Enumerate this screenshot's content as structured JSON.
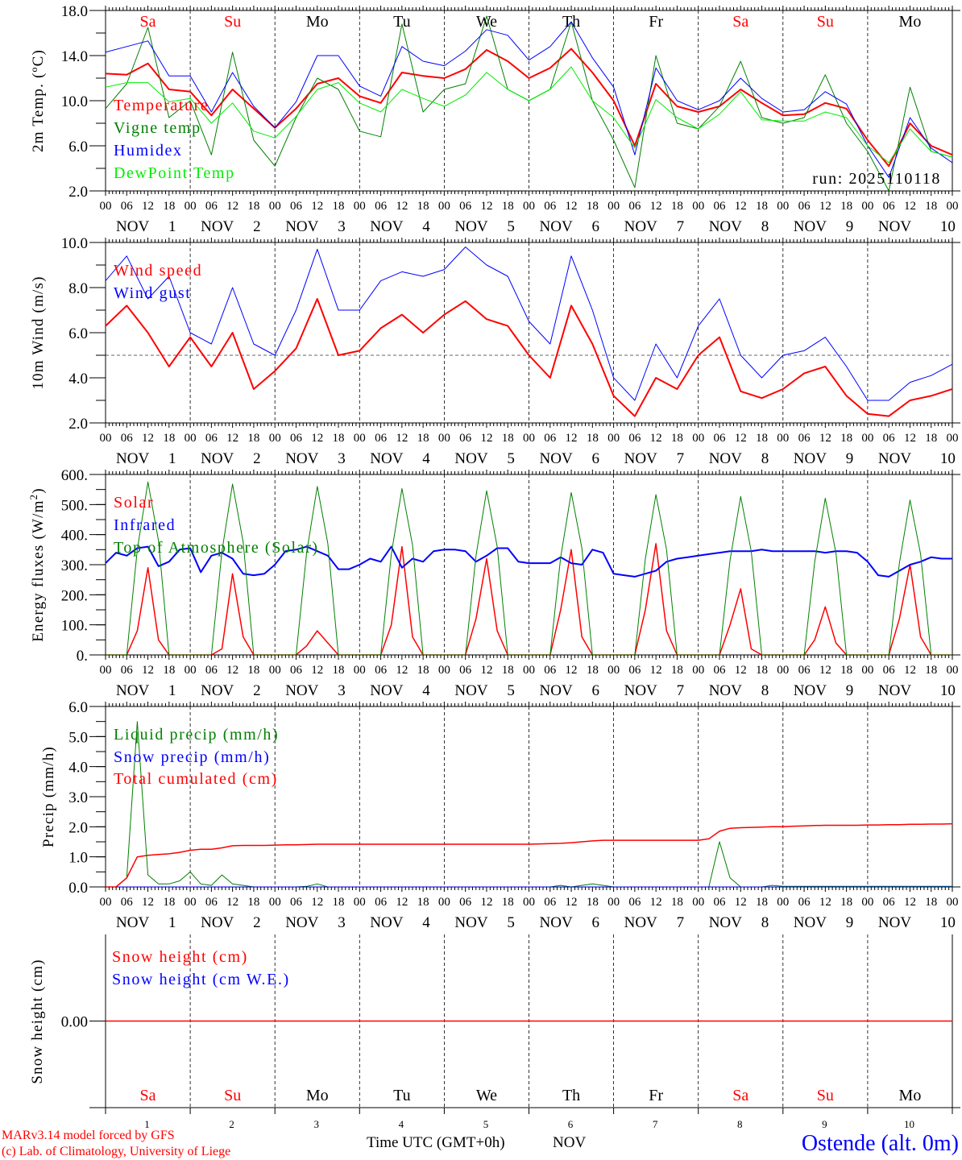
{
  "chart_data": [
    {
      "type": "line",
      "ylabel": "2m Temp. (ºC)",
      "ylim": [
        2,
        18
      ],
      "yticks": [
        "2.0",
        "6.0",
        "10.0",
        "14.0",
        "18.0"
      ],
      "ytick_values": [
        2,
        6,
        10,
        14,
        18
      ],
      "step_hours": 6,
      "annotation": "run: 2025110118",
      "series": [
        {
          "name": "Temperature",
          "color": "#ff0000",
          "width": 2,
          "values": [
            12.4,
            12.3,
            13.3,
            11.0,
            10.8,
            8.7,
            11.0,
            9.3,
            7.6,
            9.3,
            11.5,
            12.0,
            10.4,
            9.8,
            12.5,
            12.2,
            12.0,
            12.8,
            14.5,
            13.5,
            12.0,
            12.9,
            14.6,
            12.5,
            10.0,
            6.0,
            11.5,
            9.5,
            9.0,
            9.5,
            11.0,
            9.8,
            8.7,
            8.8,
            9.8,
            9.3,
            6.5,
            4.2,
            8.0,
            6.0,
            5.2
          ]
        },
        {
          "name": "Vigne temp",
          "color": "#008000",
          "width": 1,
          "values": [
            9.3,
            11.5,
            16.5,
            8.5,
            10.0,
            5.2,
            14.3,
            6.5,
            4.2,
            8.5,
            12.0,
            11.0,
            7.3,
            6.8,
            16.8,
            9.0,
            11.0,
            11.5,
            17.5,
            11.0,
            10.0,
            11.0,
            17.0,
            10.0,
            6.5,
            2.3,
            14.0,
            8.0,
            7.5,
            9.5,
            13.5,
            8.5,
            8.0,
            8.5,
            12.3,
            8.0,
            5.5,
            2.0,
            11.2,
            5.5,
            5.0
          ]
        },
        {
          "name": "Humidex",
          "color": "#0000ff",
          "width": 1,
          "values": [
            14.3,
            14.8,
            15.3,
            12.2,
            12.2,
            9.0,
            12.5,
            9.5,
            7.6,
            9.9,
            14.0,
            14.0,
            11.3,
            10.4,
            14.8,
            13.5,
            13.1,
            14.4,
            16.3,
            15.8,
            13.6,
            14.8,
            17.0,
            13.8,
            11.2,
            5.2,
            12.9,
            10.0,
            9.2,
            10.0,
            12.0,
            10.2,
            9.0,
            9.2,
            10.8,
            9.7,
            6.0,
            3.2,
            8.5,
            5.8,
            4.5
          ]
        },
        {
          "name": "DewPoint Temp",
          "color": "#00ee00",
          "width": 1,
          "values": [
            11.2,
            11.6,
            11.6,
            9.9,
            10.2,
            8.0,
            9.8,
            7.3,
            6.7,
            8.6,
            11.0,
            11.6,
            9.8,
            9.0,
            11.0,
            10.2,
            9.5,
            10.5,
            12.5,
            11.0,
            10.0,
            11.0,
            13.0,
            10.0,
            8.5,
            5.8,
            10.1,
            8.5,
            7.5,
            8.8,
            10.8,
            8.3,
            8.2,
            8.2,
            9.0,
            8.5,
            6.0,
            4.5,
            7.5,
            5.5,
            5.0
          ]
        }
      ]
    },
    {
      "type": "line",
      "ylabel": "10m Wind (m/s)",
      "ylim": [
        2,
        10
      ],
      "yticks": [
        "2.0",
        "4.0",
        "6.0",
        "8.0",
        "10.0"
      ],
      "ytick_values": [
        2,
        4,
        6,
        8,
        10
      ],
      "reference_line": 5,
      "step_hours": 6,
      "series": [
        {
          "name": "Wind speed",
          "color": "#ff0000",
          "width": 2,
          "values": [
            6.3,
            7.2,
            6.0,
            4.5,
            5.8,
            4.5,
            6.0,
            3.5,
            4.3,
            5.3,
            7.5,
            5.0,
            5.2,
            6.2,
            6.8,
            6.0,
            6.8,
            7.4,
            6.6,
            6.3,
            5.0,
            4.0,
            7.2,
            5.5,
            3.2,
            2.3,
            4.0,
            3.5,
            5.0,
            5.8,
            3.4,
            3.1,
            3.5,
            4.2,
            4.5,
            3.2,
            2.4,
            2.3,
            3.0,
            3.2,
            3.5
          ]
        },
        {
          "name": "Wind gust",
          "color": "#0000ff",
          "width": 1,
          "values": [
            8.3,
            9.4,
            7.5,
            8.5,
            6.0,
            5.5,
            8.0,
            5.5,
            5.0,
            7.0,
            9.7,
            7.0,
            7.0,
            8.3,
            8.7,
            8.5,
            8.8,
            9.8,
            9.0,
            8.5,
            6.5,
            5.5,
            9.4,
            7.0,
            4.0,
            3.0,
            5.5,
            4.0,
            6.3,
            7.5,
            5.0,
            4.0,
            5.0,
            5.2,
            5.8,
            4.5,
            3.0,
            3.0,
            3.8,
            4.1,
            4.6
          ]
        }
      ]
    },
    {
      "type": "line",
      "ylabel": "Energy fluxes (W/m²)",
      "ylim": [
        0,
        600
      ],
      "yticks": [
        "0.",
        "100.",
        "200.",
        "300.",
        "400.",
        "500.",
        "600."
      ],
      "ytick_values": [
        0,
        100,
        200,
        300,
        400,
        500,
        600
      ],
      "step_hours": 3,
      "series": [
        {
          "name": "Solar",
          "color": "#ff0000",
          "width": 1.5,
          "values": [
            0,
            0,
            0,
            80,
            290,
            50,
            0,
            0,
            0,
            0,
            0,
            20,
            270,
            60,
            0,
            0,
            0,
            0,
            0,
            30,
            80,
            40,
            0,
            0,
            0,
            0,
            0,
            100,
            360,
            60,
            0,
            0,
            0,
            0,
            0,
            120,
            320,
            80,
            0,
            0,
            0,
            0,
            0,
            150,
            350,
            60,
            0,
            0,
            0,
            0,
            0,
            150,
            370,
            80,
            0,
            0,
            0,
            0,
            0,
            100,
            220,
            20,
            0,
            0,
            0,
            0,
            0,
            50,
            160,
            40,
            0,
            0,
            0,
            0,
            0,
            120,
            300,
            60,
            0,
            0,
            0
          ]
        },
        {
          "name": "Infrared",
          "color": "#0000ff",
          "width": 2,
          "values": [
            305,
            340,
            330,
            355,
            360,
            295,
            310,
            350,
            355,
            275,
            330,
            340,
            320,
            270,
            265,
            270,
            300,
            345,
            350,
            360,
            345,
            330,
            285,
            285,
            300,
            320,
            310,
            360,
            290,
            320,
            310,
            345,
            350,
            350,
            345,
            310,
            330,
            355,
            355,
            310,
            305,
            305,
            305,
            325,
            305,
            300,
            350,
            340,
            270,
            265,
            260,
            270,
            280,
            310,
            320,
            325,
            330,
            335,
            340,
            345,
            345,
            345,
            350,
            345,
            345,
            345,
            345,
            345,
            340,
            345,
            345,
            340,
            310,
            265,
            260,
            280,
            300,
            310,
            325,
            320,
            320
          ]
        },
        {
          "name": "Top of Atmosphere (Solar)",
          "color": "#008000",
          "width": 1,
          "values": [
            0,
            0,
            0,
            350,
            575,
            380,
            0,
            0,
            0,
            0,
            0,
            345,
            568,
            375,
            0,
            0,
            0,
            0,
            0,
            340,
            560,
            370,
            0,
            0,
            0,
            0,
            0,
            335,
            553,
            365,
            0,
            0,
            0,
            0,
            0,
            330,
            546,
            360,
            0,
            0,
            0,
            0,
            0,
            325,
            540,
            355,
            0,
            0,
            0,
            0,
            0,
            320,
            533,
            350,
            0,
            0,
            0,
            0,
            0,
            315,
            527,
            345,
            0,
            0,
            0,
            0,
            0,
            310,
            521,
            340,
            0,
            0,
            0,
            0,
            0,
            305,
            515,
            335,
            0,
            0,
            0
          ]
        }
      ]
    },
    {
      "type": "line",
      "ylabel": "Precip (mm/h)",
      "ylim": [
        0,
        6
      ],
      "yticks": [
        "0.0",
        "1.0",
        "2.0",
        "3.0",
        "4.0",
        "5.0",
        "6.0"
      ],
      "ytick_values": [
        0,
        1,
        2,
        3,
        4,
        5,
        6
      ],
      "step_hours": 3,
      "series": [
        {
          "name": "Liquid precip (mm/h)",
          "color": "#008000",
          "width": 1,
          "values": [
            0,
            0,
            0.3,
            5.5,
            0.4,
            0.1,
            0.1,
            0.2,
            0.5,
            0.1,
            0.05,
            0.4,
            0.1,
            0.05,
            0,
            0,
            0,
            0,
            0,
            0.02,
            0.1,
            0,
            0,
            0,
            0,
            0,
            0,
            0,
            0,
            0,
            0,
            0,
            0,
            0,
            0,
            0,
            0,
            0,
            0,
            0,
            0,
            0,
            0,
            0.05,
            0,
            0.05,
            0.1,
            0.05,
            0,
            0,
            0,
            0,
            0,
            0,
            0,
            0,
            0,
            0,
            1.5,
            0.3,
            0,
            0,
            0,
            0.05,
            0.02,
            0.02,
            0.02,
            0.02,
            0.02,
            0.02,
            0.02,
            0.02,
            0.02,
            0.02,
            0.02,
            0.02,
            0.02,
            0.02,
            0.02,
            0.02,
            0.02
          ]
        },
        {
          "name": "Snow precip (mm/h)",
          "color": "#0000ff",
          "width": 1,
          "values": [
            0,
            0
          ]
        },
        {
          "name": "Total cumulated (cm)",
          "color": "#ff0000",
          "width": 1.5,
          "values": [
            0,
            0,
            0.3,
            1.0,
            1.05,
            1.08,
            1.1,
            1.15,
            1.22,
            1.25,
            1.25,
            1.3,
            1.37,
            1.38,
            1.38,
            1.38,
            1.39,
            1.4,
            1.4,
            1.41,
            1.42,
            1.42,
            1.42,
            1.42,
            1.42,
            1.42,
            1.42,
            1.42,
            1.42,
            1.42,
            1.42,
            1.42,
            1.42,
            1.42,
            1.42,
            1.42,
            1.42,
            1.42,
            1.42,
            1.42,
            1.42,
            1.43,
            1.44,
            1.45,
            1.47,
            1.5,
            1.53,
            1.55,
            1.55,
            1.55,
            1.55,
            1.55,
            1.55,
            1.55,
            1.55,
            1.55,
            1.55,
            1.6,
            1.85,
            1.95,
            1.97,
            1.98,
            1.99,
            2.0,
            2.0,
            2.02,
            2.03,
            2.04,
            2.05,
            2.05,
            2.05,
            2.05,
            2.06,
            2.06,
            2.07,
            2.07,
            2.08,
            2.08,
            2.09,
            2.09,
            2.1
          ]
        }
      ]
    },
    {
      "type": "line",
      "ylabel": "Snow height (cm)",
      "ylim": [
        -1,
        1
      ],
      "yticks": [
        "0.00"
      ],
      "ytick_values": [
        0
      ],
      "series": [
        {
          "name": "Snow height (cm W.E.)",
          "color": "#0000ff",
          "width": 1,
          "values": [
            0,
            0
          ]
        },
        {
          "name": "Snow height (cm)",
          "color": "#ff0000",
          "width": 1.5,
          "values": [
            0,
            0
          ]
        }
      ]
    }
  ],
  "x_axis": {
    "hour_labels": [
      "00",
      "06",
      "12",
      "18"
    ],
    "month": "NOV",
    "dates": [
      "1",
      "2",
      "3",
      "4",
      "5",
      "6",
      "7",
      "8",
      "9",
      "10"
    ],
    "final_hour_label": "00",
    "day_names": [
      {
        "label": "Sa",
        "color": "#ff0000"
      },
      {
        "label": "Su",
        "color": "#ff0000"
      },
      {
        "label": "Mo",
        "color": "#000000"
      },
      {
        "label": "Tu",
        "color": "#000000"
      },
      {
        "label": "We",
        "color": "#000000"
      },
      {
        "label": "Th",
        "color": "#000000"
      },
      {
        "label": "Fr",
        "color": "#000000"
      },
      {
        "label": "Sa",
        "color": "#ff0000"
      },
      {
        "label": "Su",
        "color": "#ff0000"
      },
      {
        "label": "Mo",
        "color": "#000000"
      }
    ],
    "title": "Time UTC (GMT+0h)",
    "month_title": "NOV"
  },
  "footer": {
    "model": "MARv3.14 model forced by GFS",
    "credit": "(c) Lab. of Climatology, University of Liege",
    "station": "Ostende (alt. 0m)"
  }
}
